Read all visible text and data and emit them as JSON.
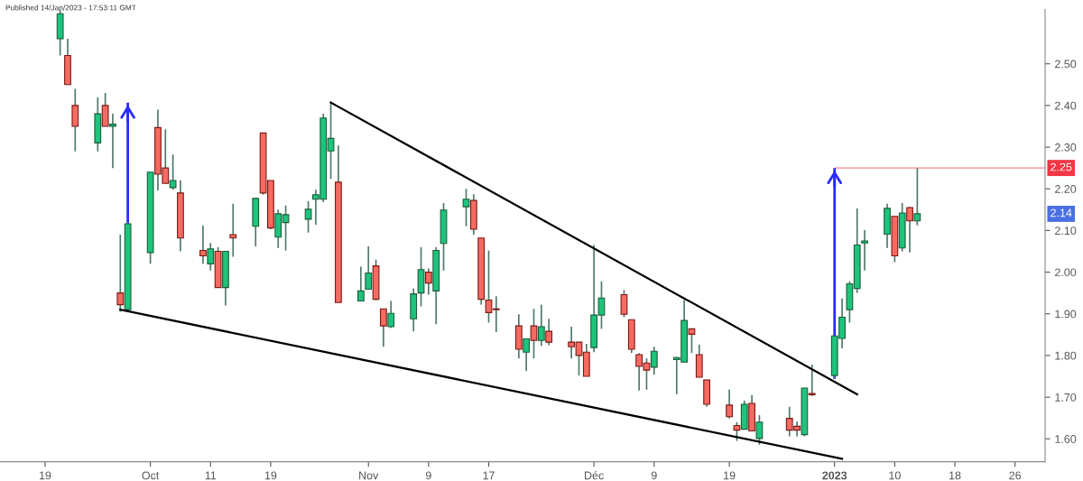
{
  "chart_data": {
    "type": "candlestick",
    "annotations": [
      "Published 14/Jan/2023 - 17:53:11 GMT",
      {
        "text": "2.14",
        "y": 2.14
      }
    ],
    "x": [
      "2022-09-21",
      "2022-09-22",
      "2022-09-23",
      "2022-09-26",
      "2022-09-27",
      "2022-09-28",
      "2022-09-29",
      "2022-09-30",
      "2022-10-03",
      "2022-10-04",
      "2022-10-05",
      "2022-10-06",
      "2022-10-07",
      "2022-10-10",
      "2022-10-11",
      "2022-10-12",
      "2022-10-13",
      "2022-10-14",
      "2022-10-17",
      "2022-10-18",
      "2022-10-19",
      "2022-10-20",
      "2022-10-21",
      "2022-10-24",
      "2022-10-25",
      "2022-10-26",
      "2022-10-27",
      "2022-10-28",
      "2022-10-31",
      "2022-11-01",
      "2022-11-02",
      "2022-11-03",
      "2022-11-04",
      "2022-11-07",
      "2022-11-08",
      "2022-11-09",
      "2022-11-10",
      "2022-11-11",
      "2022-11-14",
      "2022-11-15",
      "2022-11-16",
      "2022-11-17",
      "2022-11-18",
      "2022-11-21",
      "2022-11-22",
      "2022-11-23",
      "2022-11-24",
      "2022-11-25",
      "2022-11-28",
      "2022-11-29",
      "2022-11-30",
      "2022-12-01",
      "2022-12-02",
      "2022-12-05",
      "2022-12-06",
      "2022-12-07",
      "2022-12-08",
      "2022-12-09",
      "2022-12-12",
      "2022-12-13",
      "2022-12-14",
      "2022-12-15",
      "2022-12-16",
      "2022-12-19",
      "2022-12-20",
      "2022-12-21",
      "2022-12-22",
      "2022-12-23",
      "2022-12-27",
      "2022-12-28",
      "2022-12-29",
      "2022-12-30",
      "2023-01-02",
      "2023-01-03",
      "2023-01-04",
      "2023-01-05",
      "2023-01-06",
      "2023-01-09",
      "2023-01-10",
      "2023-01-11",
      "2023-01-12",
      "2023-01-13"
    ],
    "ohlc": [
      [
        2.56,
        2.63,
        2.52,
        2.62
      ],
      [
        2.52,
        2.56,
        2.45,
        2.45
      ],
      [
        2.4,
        2.44,
        2.29,
        2.35
      ],
      [
        2.31,
        2.42,
        2.29,
        2.38
      ],
      [
        2.4,
        2.43,
        2.35,
        2.35
      ],
      [
        2.35,
        2.38,
        2.25,
        2.355
      ],
      [
        1.95,
        2.09,
        1.905,
        1.922
      ],
      [
        1.91,
        2.12,
        1.905,
        2.116
      ],
      [
        2.047,
        2.24,
        2.02,
        2.24
      ],
      [
        2.347,
        2.39,
        2.196,
        2.235
      ],
      [
        2.25,
        2.343,
        2.213,
        2.213
      ],
      [
        2.203,
        2.282,
        2.198,
        2.22
      ],
      [
        2.19,
        2.22,
        2.05,
        2.082
      ],
      [
        2.052,
        2.112,
        2.02,
        2.039
      ],
      [
        2.02,
        2.07,
        2.004,
        2.056
      ],
      [
        2.05,
        2.06,
        1.963,
        1.963
      ],
      [
        1.963,
        2.05,
        1.92,
        2.05
      ],
      [
        2.09,
        2.164,
        2.037,
        2.082
      ],
      [
        2.11,
        2.177,
        2.062,
        2.177
      ],
      [
        2.334,
        2.334,
        2.186,
        2.19
      ],
      [
        2.22,
        2.22,
        2.103,
        2.106
      ],
      [
        2.084,
        2.15,
        2.058,
        2.14
      ],
      [
        2.119,
        2.16,
        2.052,
        2.138
      ],
      [
        2.127,
        2.17,
        2.095,
        2.151
      ],
      [
        2.175,
        2.198,
        2.114,
        2.186
      ],
      [
        2.175,
        2.38,
        2.168,
        2.37
      ],
      [
        2.291,
        2.407,
        2.224,
        2.321
      ],
      [
        2.216,
        2.304,
        1.927,
        1.927
      ],
      [
        1.931,
        2.013,
        1.931,
        1.955
      ],
      [
        1.959,
        2.062,
        1.959,
        1.998
      ],
      [
        2.015,
        2.03,
        1.933,
        1.935
      ],
      [
        1.912,
        1.912,
        1.821,
        1.871
      ],
      [
        1.869,
        1.931,
        1.866,
        1.901
      ],
      [
        1.888,
        1.961,
        1.858,
        1.948
      ],
      [
        1.95,
        2.06,
        1.918,
        2.006
      ],
      [
        2.0,
        2.009,
        1.946,
        1.974
      ],
      [
        1.955,
        2.06,
        1.875,
        2.052
      ],
      [
        2.069,
        2.166,
        2.004,
        2.149
      ],
      [
        2.157,
        2.2,
        2.11,
        2.175
      ],
      [
        2.172,
        2.187,
        2.09,
        2.103
      ],
      [
        2.082,
        2.082,
        1.922,
        1.935
      ],
      [
        1.933,
        2.052,
        1.879,
        1.903
      ],
      [
        1.912,
        1.942,
        1.856,
        1.91
      ],
      [
        1.871,
        1.899,
        1.793,
        1.815
      ],
      [
        1.808,
        1.84,
        1.763,
        1.84
      ],
      [
        1.871,
        1.912,
        1.793,
        1.836
      ],
      [
        1.836,
        1.922,
        1.823,
        1.869
      ],
      [
        1.858,
        1.888,
        1.825,
        1.832
      ],
      [
        1.832,
        1.869,
        1.793,
        1.821
      ],
      [
        1.832,
        1.832,
        1.752,
        1.8
      ],
      [
        1.808,
        1.828,
        1.75,
        1.75
      ],
      [
        1.819,
        2.065,
        1.808,
        1.897
      ],
      [
        1.897,
        1.978,
        1.864,
        1.938
      ],
      [
        1.946,
        1.957,
        1.892,
        1.899
      ],
      [
        1.886,
        1.886,
        1.806,
        1.815
      ],
      [
        1.802,
        1.806,
        1.716,
        1.774
      ],
      [
        1.782,
        1.793,
        1.718,
        1.765
      ],
      [
        1.772,
        1.821,
        1.754,
        1.81
      ],
      [
        1.79,
        1.797,
        1.707,
        1.795
      ],
      [
        1.784,
        1.933,
        1.784,
        1.884
      ],
      [
        1.864,
        1.864,
        1.806,
        1.851
      ],
      [
        1.802,
        1.826,
        1.748,
        1.748
      ],
      [
        1.741,
        1.741,
        1.677,
        1.683
      ],
      [
        1.681,
        1.718,
        1.649,
        1.653
      ],
      [
        1.632,
        1.64,
        1.595,
        1.621
      ],
      [
        1.623,
        1.692,
        1.623,
        1.683
      ],
      [
        1.685,
        1.705,
        1.619,
        1.619
      ],
      [
        1.601,
        1.657,
        1.586,
        1.64
      ],
      [
        1.649,
        1.677,
        1.606,
        1.621
      ],
      [
        1.63,
        1.642,
        1.606,
        1.621
      ],
      [
        1.61,
        1.722,
        1.606,
        1.722
      ],
      [
        1.709,
        1.778,
        1.703,
        1.706
      ],
      [
        1.752,
        1.847,
        1.744,
        1.847
      ],
      [
        1.841,
        1.937,
        1.817,
        1.892
      ],
      [
        1.91,
        1.978,
        1.879,
        1.972
      ],
      [
        1.961,
        2.153,
        1.95,
        2.065
      ],
      [
        2.07,
        2.101,
        2.004,
        2.075
      ],
      [
        2.091,
        2.164,
        2.058,
        2.153
      ],
      [
        2.134,
        2.134,
        2.024,
        2.039
      ],
      [
        2.058,
        2.166,
        2.05,
        2.142
      ],
      [
        2.155,
        2.157,
        2.047,
        2.123
      ],
      [
        2.123,
        2.25,
        2.112,
        2.14
      ]
    ],
    "colors": [
      "#1ec37c",
      "#f56b62",
      "#f56b62",
      "#1ec37c",
      "#f56b62",
      "#1ec37c",
      "#f56b62",
      "#1ec37c",
      "#1ec37c",
      "#f56b62",
      "#f56b62",
      "#1ec37c",
      "#f56b62",
      "#f56b62",
      "#1ec37c",
      "#f56b62",
      "#1ec37c",
      "#f56b62",
      "#1ec37c",
      "#f56b62",
      "#f56b62",
      "#1ec37c",
      "#1ec37c",
      "#1ec37c",
      "#1ec37c",
      "#1ec37c",
      "#1ec37c",
      "#f56b62",
      "#1ec37c",
      "#1ec37c",
      "#f56b62",
      "#f56b62",
      "#1ec37c",
      "#1ec37c",
      "#1ec37c",
      "#f56b62",
      "#1ec37c",
      "#1ec37c",
      "#1ec37c",
      "#f56b62",
      "#f56b62",
      "#f56b62",
      "#f56b62",
      "#f56b62",
      "#1ec37c",
      "#f56b62",
      "#1ec37c",
      "#f56b62",
      "#f56b62",
      "#f56b62",
      "#f56b62",
      "#1ec37c",
      "#1ec37c",
      "#f56b62",
      "#f56b62",
      "#f56b62",
      "#f56b62",
      "#1ec37c",
      "#1ec37c",
      "#1ec37c",
      "#f56b62",
      "#f56b62",
      "#f56b62",
      "#f56b62",
      "#f56b62",
      "#1ec37c",
      "#f56b62",
      "#1ec37c",
      "#f56b62",
      "#f56b62",
      "#1ec37c",
      "#f56b62",
      "#1ec37c",
      "#1ec37c",
      "#1ec37c",
      "#1ec37c",
      "#1ec37c",
      "#1ec37c",
      "#f56b62",
      "#1ec37c",
      "#f56b62",
      "#1ec37c"
    ],
    "series": [
      {
        "type": "line",
        "x": [
          "2022-10-27",
          "2023-01-05"
        ],
        "values": [
          2.407,
          1.707
        ],
        "color": "#000000"
      },
      {
        "type": "line",
        "x": [
          "2022-09-29",
          "2023-01-03"
        ],
        "values": [
          1.91,
          1.552
        ],
        "color": "#000000"
      }
    ],
    "ref_lines": [
      {
        "axis": "y",
        "value": 2.25,
        "label": "2.25",
        "color": "#f23645"
      }
    ],
    "xlim": [
      "2022-09-13",
      "2023-01-30"
    ],
    "xticks": [
      {
        "value": "2022-09-19",
        "label": "19"
      },
      {
        "value": "2022-10-03",
        "label": "Oct"
      },
      {
        "value": "2022-10-11",
        "label": "11"
      },
      {
        "value": "2022-10-19",
        "label": "19"
      },
      {
        "value": "2022-11-01",
        "label": "Nov"
      },
      {
        "value": "2022-11-09",
        "label": "9"
      },
      {
        "value": "2022-11-17",
        "label": "17"
      },
      {
        "value": "2022-12-01",
        "label": "Déc"
      },
      {
        "value": "2022-12-09",
        "label": "9"
      },
      {
        "value": "2022-12-19",
        "label": "19"
      },
      {
        "value": "2023-01-02",
        "label": "2023"
      },
      {
        "value": "2023-01-10",
        "label": "10"
      },
      {
        "value": "2023-01-18",
        "label": "18"
      },
      {
        "value": "2023-01-26",
        "label": "26"
      }
    ],
    "ylim": [
      1.545,
      2.63
    ],
    "yticks": [
      {
        "value": 1.6,
        "label": "1.60"
      },
      {
        "value": 1.7,
        "label": "1.70"
      },
      {
        "value": 1.8,
        "label": "1.80"
      },
      {
        "value": 1.9,
        "label": "1.90"
      },
      {
        "value": 2.0,
        "label": "2.00"
      },
      {
        "value": 2.1,
        "label": "2.10"
      },
      {
        "value": 2.2,
        "label": "2.20"
      },
      {
        "value": 2.3,
        "label": "2.30"
      },
      {
        "value": 2.4,
        "label": "2.40"
      },
      {
        "value": 2.5,
        "label": "2.50"
      }
    ],
    "grid": false,
    "legend": false
  }
}
